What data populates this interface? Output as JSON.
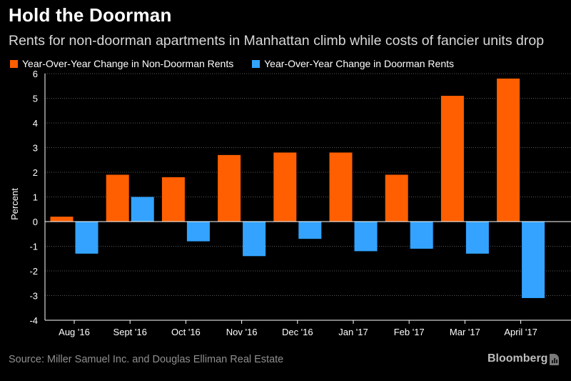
{
  "header": {
    "title": "Hold the Doorman",
    "subtitle": "Rents for non-doorman apartments in Manhattan climb while costs of fancier units drop"
  },
  "legend": {
    "items": [
      {
        "label": "Year-Over-Year Change in Non-Doorman Rents",
        "color": "#ff5f00"
      },
      {
        "label": "Year-Over-Year Change in Doorman Rents",
        "color": "#33a3ff"
      }
    ]
  },
  "footer": {
    "source": "Source: Miller Samuel Inc. and Douglas Elliman Real Estate",
    "brand": "Bloomberg"
  },
  "chart_data": {
    "type": "bar",
    "title": "Hold the Doorman",
    "xlabel": "",
    "ylabel": "Percent",
    "ylim": [
      -4,
      6
    ],
    "yticks": [
      "6",
      "5",
      "4",
      "3",
      "2",
      "1",
      "0",
      "-1",
      "-2",
      "-3",
      "-4"
    ],
    "categories": [
      "Aug '16",
      "Sept '16",
      "Oct '16",
      "Nov '16",
      "Dec '16",
      "Jan '17",
      "Feb '17",
      "Mar '17",
      "April '17"
    ],
    "series": [
      {
        "name": "Year-Over-Year Change in Non-Doorman Rents",
        "color": "#ff5f00",
        "values": [
          0.2,
          1.9,
          1.8,
          2.7,
          2.8,
          2.8,
          1.9,
          5.1,
          5.8
        ]
      },
      {
        "name": "Year-Over-Year Change in Doorman Rents",
        "color": "#33a3ff",
        "values": [
          -1.3,
          1.0,
          -0.8,
          -1.4,
          -0.7,
          -1.2,
          -1.1,
          -1.3,
          -3.1
        ]
      }
    ],
    "legend_position": "top-left",
    "grid": true
  }
}
